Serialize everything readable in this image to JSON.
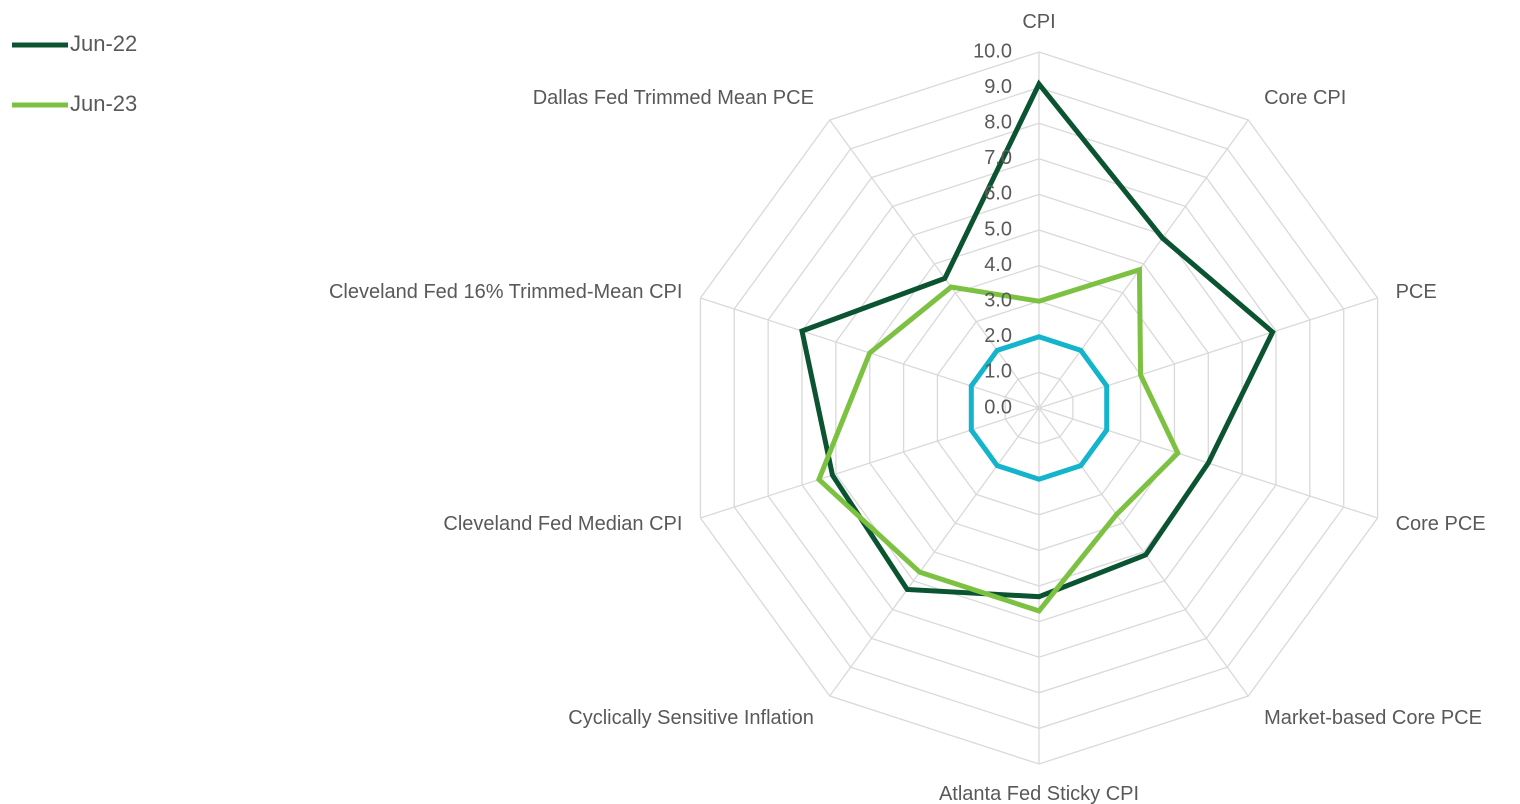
{
  "chart_data": {
    "type": "radar",
    "categories": [
      "CPI",
      "Core CPI",
      "PCE",
      "Core PCE",
      "Market-based Core PCE",
      "Atlanta Fed Sticky CPI",
      "Cyclically Sensitive Inflation",
      "Cleveland Fed Median CPI",
      "Cleveland Fed 16% Trimmed-Mean CPI",
      "Dallas Fed Trimmed Mean PCE"
    ],
    "series": [
      {
        "name": "Jun-22",
        "color": "#0b5432",
        "values": [
          9.1,
          5.9,
          6.9,
          5.0,
          5.1,
          5.3,
          6.3,
          6.1,
          7.0,
          4.5
        ]
      },
      {
        "name": "Jun-23",
        "color": "#7dc142",
        "values": [
          3.0,
          4.8,
          3.0,
          4.1,
          3.7,
          5.7,
          5.7,
          6.5,
          5.0,
          4.2
        ]
      },
      {
        "color": "#14b4cc",
        "values": [
          2.0,
          2.0,
          2.0,
          2.0,
          2.0,
          2.0,
          2.0,
          2.0,
          2.0,
          2.0
        ]
      }
    ],
    "rlim": [
      0,
      10
    ],
    "rticks": [
      {
        "value": 0,
        "label": "0.0"
      },
      {
        "value": 1,
        "label": "1.0"
      },
      {
        "value": 2,
        "label": "2.0"
      },
      {
        "value": 3,
        "label": "3.0"
      },
      {
        "value": 4,
        "label": "4.0"
      },
      {
        "value": 5,
        "label": "5.0"
      },
      {
        "value": 6,
        "label": "6.0"
      },
      {
        "value": 7,
        "label": "7.0"
      },
      {
        "value": 8,
        "label": "8.0"
      },
      {
        "value": 9,
        "label": "9.0"
      },
      {
        "value": 10,
        "label": "10.0"
      }
    ],
    "grid": true,
    "legend": "top-left"
  }
}
